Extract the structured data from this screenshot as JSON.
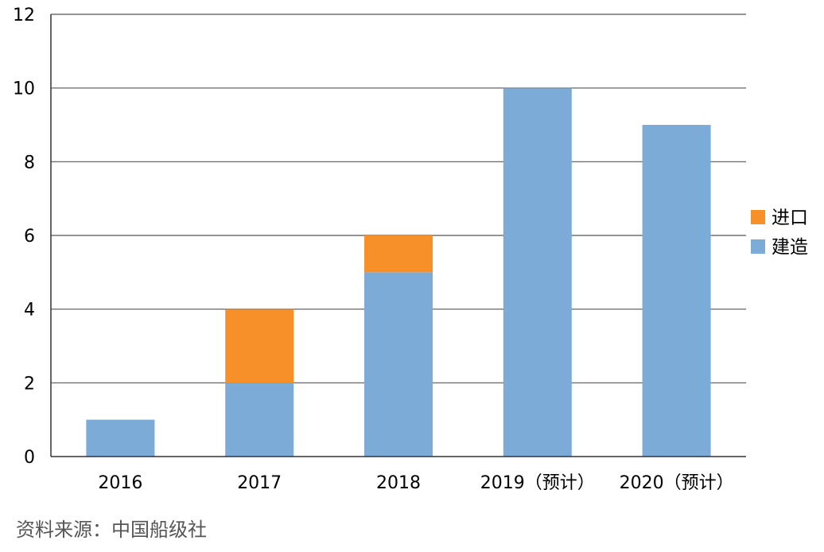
{
  "chart_data": {
    "type": "bar",
    "stacked": true,
    "categories": [
      "2016",
      "2017",
      "2018",
      "2019（预计）",
      "2020（预计）"
    ],
    "series": [
      {
        "name": "建造",
        "color": "#7dabd8",
        "values": [
          1,
          2,
          5,
          10,
          9
        ]
      },
      {
        "name": "进口",
        "color": "#f8902a",
        "values": [
          0,
          2,
          1,
          0,
          0
        ]
      }
    ],
    "ylim": [
      0,
      12
    ],
    "yticks": [
      0,
      2,
      4,
      6,
      8,
      10,
      12
    ],
    "grid": true,
    "legend_position": "right",
    "title": "",
    "xlabel": "",
    "ylabel": ""
  },
  "source_note": "资料来源：中国船级社"
}
